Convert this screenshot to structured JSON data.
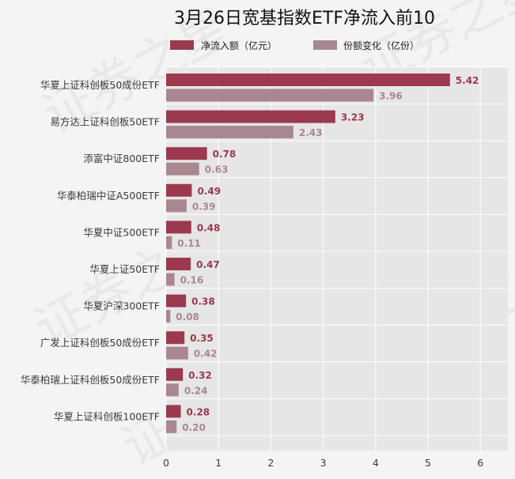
{
  "chart_data": {
    "type": "bar",
    "orientation": "horizontal",
    "title": "3月26日宽基指数ETF净流入前10",
    "categories": [
      "华夏上证科创板50成份ETF",
      "易方达上证科创板50ETF",
      "添富中证800ETF",
      "华泰柏瑞中证A500ETF",
      "华夏中证500ETF",
      "华夏上证50ETF",
      "华夏沪深300ETF",
      "广发上证科创板50成份ETF",
      "华泰柏瑞上证科创板50成份ETF",
      "华夏上证科创板100ETF"
    ],
    "series": [
      {
        "name": "净流入额（亿元）",
        "color": "#9b3a4e",
        "values": [
          5.42,
          3.23,
          0.78,
          0.49,
          0.48,
          0.47,
          0.38,
          0.35,
          0.32,
          0.28
        ],
        "value_labels": [
          "5.42",
          "3.23",
          "0.78",
          "0.49",
          "0.48",
          "0.47",
          "0.38",
          "0.35",
          "0.32",
          "0.28"
        ]
      },
      {
        "name": "份额变化（亿份）",
        "color": "#a98791",
        "values": [
          3.96,
          2.43,
          0.63,
          0.39,
          0.11,
          0.16,
          0.08,
          0.42,
          0.24,
          0.2
        ],
        "value_labels": [
          "3.96",
          "2.43",
          "0.63",
          "0.39",
          "0.11",
          "0.16",
          "0.08",
          "0.42",
          "0.24",
          "0.20"
        ]
      }
    ],
    "xlim": [
      0,
      6.5
    ],
    "xticks": [
      "0",
      "1",
      "2",
      "3",
      "4",
      "5",
      "6"
    ],
    "grid": true,
    "legend": "top-center",
    "plot_background": "#e6e6e6",
    "page_background": "#f4f4f4"
  },
  "watermark": {
    "text": "证券之星"
  }
}
